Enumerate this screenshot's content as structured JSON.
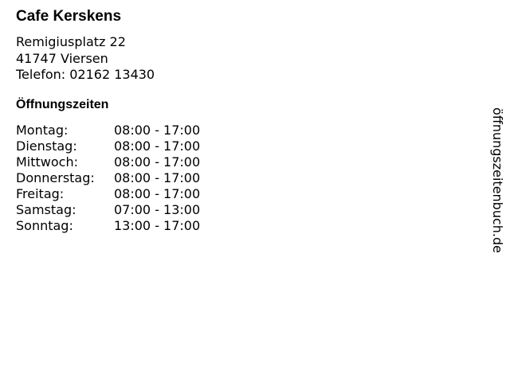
{
  "name": "Cafe Kerskens",
  "address": {
    "street": "Remigiusplatz 22",
    "city": "41747 Viersen",
    "phone": "Telefon: 02162 13430"
  },
  "hours_title": "Öffnungszeiten",
  "hours": [
    {
      "day": "Montag:",
      "time": "08:00 - 17:00"
    },
    {
      "day": "Dienstag:",
      "time": "08:00 - 17:00"
    },
    {
      "day": "Mittwoch:",
      "time": "08:00 - 17:00"
    },
    {
      "day": "Donnerstag:",
      "time": "08:00 - 17:00"
    },
    {
      "day": "Freitag:",
      "time": "08:00 - 17:00"
    },
    {
      "day": "Samstag:",
      "time": "07:00 - 13:00"
    },
    {
      "day": "Sonntag:",
      "time": "13:00 - 17:00"
    }
  ],
  "watermark": "öffnungszeitenbuch.de"
}
